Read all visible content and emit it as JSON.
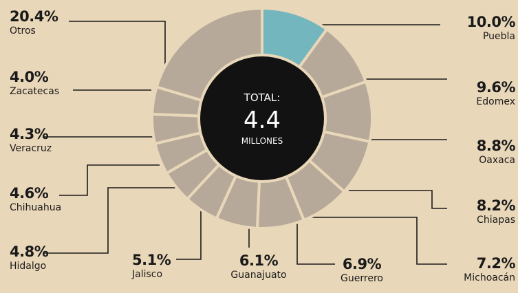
{
  "chart_data": {
    "type": "donut",
    "center": {
      "line1": "TOTAL:",
      "line2": "4.4",
      "line3": "MILLONES"
    },
    "slices": [
      {
        "value_label": "10.0%",
        "name": "Puebla",
        "value": 10.0
      },
      {
        "value_label": "9.6%",
        "name": "Edomex",
        "value": 9.6
      },
      {
        "value_label": "8.8%",
        "name": "Oaxaca",
        "value": 8.8
      },
      {
        "value_label": "8.2%",
        "name": "Chiapas",
        "value": 8.2
      },
      {
        "value_label": "7.2%",
        "name": "Michoacán",
        "value": 7.2
      },
      {
        "value_label": "6.9%",
        "name": "Guerrero",
        "value": 6.9
      },
      {
        "value_label": "6.1%",
        "name": "Guanajuato",
        "value": 6.1
      },
      {
        "value_label": "5.1%",
        "name": "Jalisco",
        "value": 5.1
      },
      {
        "value_label": "4.8%",
        "name": "Hidalgo",
        "value": 4.8
      },
      {
        "value_label": "4.6%",
        "name": "Chihuahua",
        "value": 4.6
      },
      {
        "value_label": "4.3%",
        "name": "Veracruz",
        "value": 4.3
      },
      {
        "value_label": "4.0%",
        "name": "Zacatecas",
        "value": 4.0
      },
      {
        "value_label": "20.4%",
        "name": "Otros",
        "value": 20.4
      }
    ],
    "colors": {
      "highlight": "#74b6bd",
      "slice": "#b6a99a",
      "center": "#121212",
      "background": "#e9d7b9"
    }
  }
}
